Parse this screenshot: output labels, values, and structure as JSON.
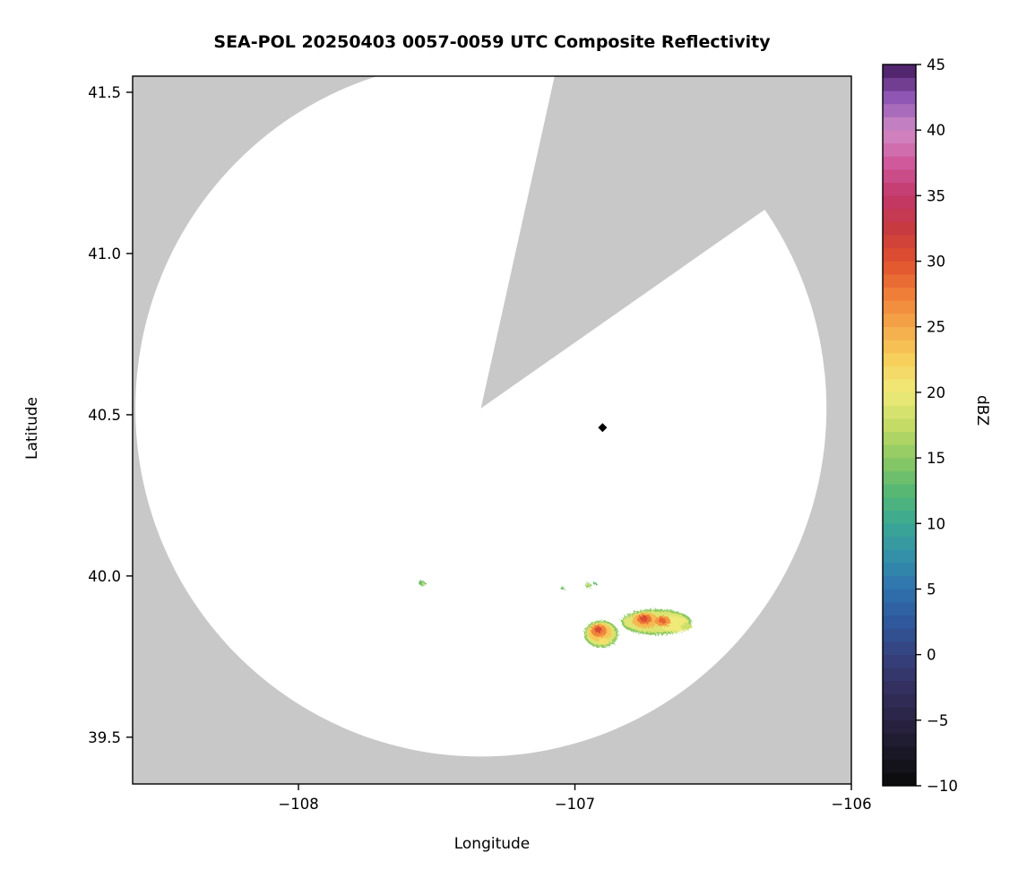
{
  "chart_data": {
    "type": "heatmap",
    "title": "SEA-POL 20250403 0057-0059 UTC Composite Reflectivity",
    "xlabel": "Longitude",
    "ylabel": "Latitude",
    "xlim": [
      -108.6,
      -106.0
    ],
    "ylim": [
      39.355,
      41.55
    ],
    "xticks": [
      -108,
      -107,
      -106
    ],
    "yticks": [
      39.5,
      40.0,
      40.5,
      41.0,
      41.5
    ],
    "grid": false,
    "colors": {
      "out_of_range": "#c8c8c8",
      "coverage": "#ffffff",
      "frame": "#000000"
    },
    "radar": {
      "center_lon": -107.34,
      "center_lat": 40.52,
      "radius_lon_deg": 1.25,
      "radius_lat_deg": 1.08,
      "blocked_sector_azimuth_deg": [
        12.5,
        55
      ]
    },
    "marker": {
      "lon": -106.9,
      "lat": 40.46,
      "shape": "diamond",
      "color": "#000000"
    },
    "echoes": [
      {
        "lon": -106.905,
        "lat": 39.82,
        "rx": 0.062,
        "ry": 0.042,
        "dbz": 15
      },
      {
        "lon": -106.906,
        "lat": 39.821,
        "rx": 0.054,
        "ry": 0.036,
        "dbz": 19
      },
      {
        "lon": -106.909,
        "lat": 39.825,
        "rx": 0.042,
        "ry": 0.028,
        "dbz": 23
      },
      {
        "lon": -106.913,
        "lat": 39.83,
        "rx": 0.028,
        "ry": 0.019,
        "dbz": 27
      },
      {
        "lon": -106.916,
        "lat": 39.833,
        "rx": 0.014,
        "ry": 0.01,
        "dbz": 31
      },
      {
        "lon": -106.896,
        "lat": 39.798,
        "rx": 0.018,
        "ry": 0.01,
        "dbz": 21
      },
      {
        "lon": -106.705,
        "lat": 39.857,
        "rx": 0.128,
        "ry": 0.04,
        "dbz": 15
      },
      {
        "lon": -106.707,
        "lat": 39.858,
        "rx": 0.118,
        "ry": 0.033,
        "dbz": 19
      },
      {
        "lon": -106.64,
        "lat": 39.85,
        "rx": 0.05,
        "ry": 0.024,
        "dbz": 20
      },
      {
        "lon": -106.745,
        "lat": 39.862,
        "rx": 0.048,
        "ry": 0.024,
        "dbz": 24
      },
      {
        "lon": -106.749,
        "lat": 39.866,
        "rx": 0.027,
        "ry": 0.015,
        "dbz": 28
      },
      {
        "lon": -106.751,
        "lat": 39.868,
        "rx": 0.013,
        "ry": 0.009,
        "dbz": 31
      },
      {
        "lon": -106.682,
        "lat": 39.86,
        "rx": 0.028,
        "ry": 0.016,
        "dbz": 26
      },
      {
        "lon": -106.684,
        "lat": 39.862,
        "rx": 0.013,
        "ry": 0.009,
        "dbz": 29
      },
      {
        "lon": -106.597,
        "lat": 39.843,
        "rx": 0.02,
        "ry": 0.011,
        "dbz": 18
      },
      {
        "lon": -107.552,
        "lat": 39.977,
        "rx": 0.012,
        "ry": 0.009,
        "dbz": 13
      },
      {
        "lon": -107.549,
        "lat": 39.976,
        "rx": 0.005,
        "ry": 0.004,
        "dbz": 18
      },
      {
        "lon": -107.045,
        "lat": 39.962,
        "rx": 0.007,
        "ry": 0.006,
        "dbz": 14
      },
      {
        "lon": -106.952,
        "lat": 39.971,
        "rx": 0.012,
        "ry": 0.007,
        "dbz": 15
      },
      {
        "lon": -106.95,
        "lat": 39.972,
        "rx": 0.005,
        "ry": 0.004,
        "dbz": 19
      },
      {
        "lon": -106.927,
        "lat": 39.976,
        "rx": 0.006,
        "ry": 0.005,
        "dbz": 13
      }
    ],
    "colorbar": {
      "label": "dBZ",
      "min": -10,
      "max": 45,
      "ticks": [
        -10,
        -5,
        0,
        5,
        10,
        15,
        20,
        25,
        30,
        35,
        40,
        45
      ],
      "stops": [
        [
          -10,
          "#0a0a0a"
        ],
        [
          -7.5,
          "#1a1726"
        ],
        [
          -5,
          "#2a2344"
        ],
        [
          -2.5,
          "#333060"
        ],
        [
          0,
          "#36417e"
        ],
        [
          2.5,
          "#30589c"
        ],
        [
          5,
          "#2f72ae"
        ],
        [
          7.5,
          "#3390a8"
        ],
        [
          10,
          "#3aa893"
        ],
        [
          12.5,
          "#58b873"
        ],
        [
          15,
          "#8cc963"
        ],
        [
          17.5,
          "#c4dc66"
        ],
        [
          20,
          "#f0ea79"
        ],
        [
          22.5,
          "#f7d05c"
        ],
        [
          25,
          "#f5a94a"
        ],
        [
          27.5,
          "#ef7e38"
        ],
        [
          30,
          "#e1512e"
        ],
        [
          32.5,
          "#c73a40"
        ],
        [
          35,
          "#c2386b"
        ],
        [
          37.5,
          "#d0599c"
        ],
        [
          40,
          "#cf8ac5"
        ],
        [
          42.5,
          "#8f56b4"
        ],
        [
          45,
          "#43195e"
        ]
      ]
    }
  }
}
